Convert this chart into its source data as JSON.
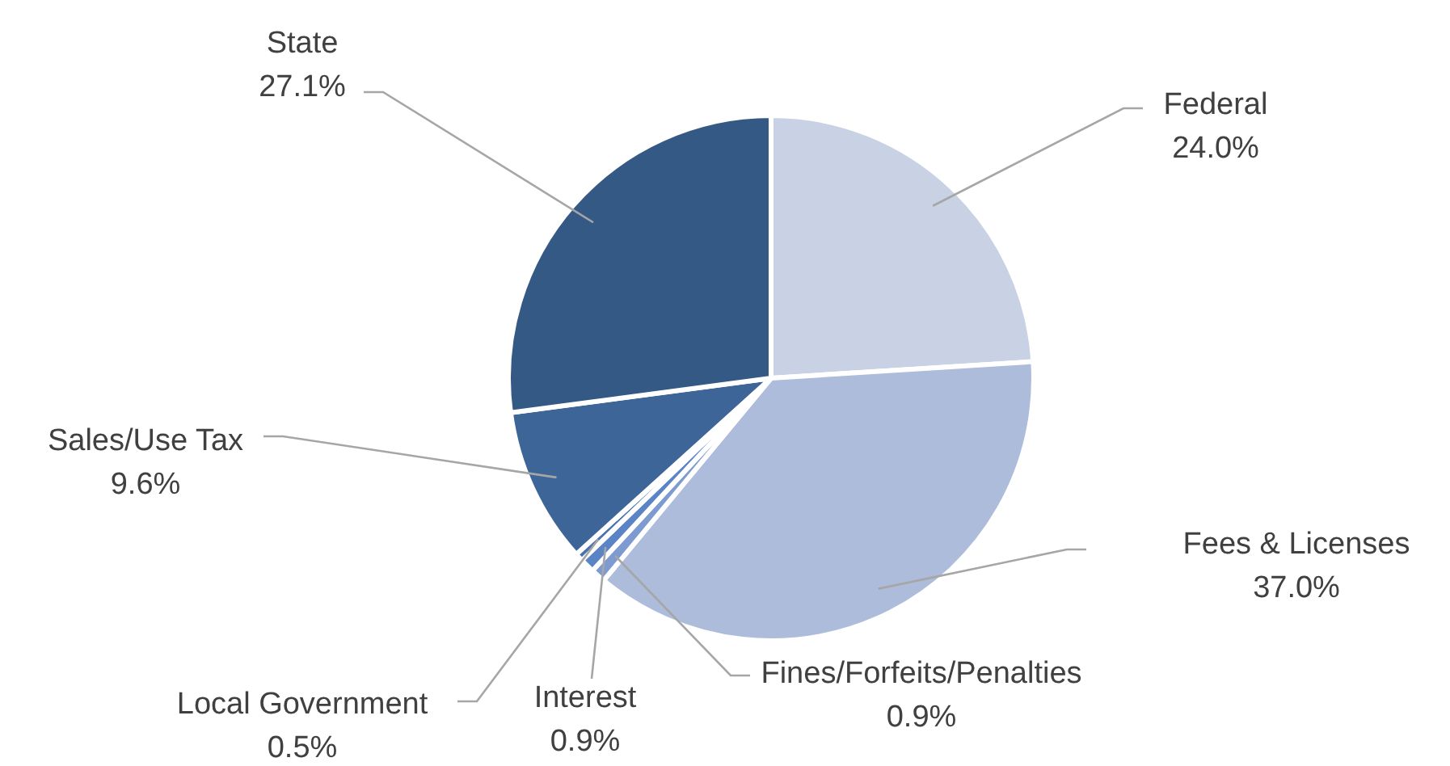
{
  "chart_data": {
    "type": "pie",
    "categories": [
      "Federal",
      "Fees & Licenses",
      "Fines/Forfeits/Penalties",
      "Interest",
      "Local Government",
      "Sales/Use Tax",
      "State"
    ],
    "values": [
      24.0,
      37.0,
      0.9,
      0.9,
      0.5,
      9.6,
      27.1
    ],
    "value_labels": [
      "24.0%",
      "37.0%",
      "0.9%",
      "0.9%",
      "0.5%",
      "9.6%",
      "27.1%"
    ],
    "colors": [
      "#c9d1e4",
      "#aebcdb",
      "#7e9bd1",
      "#5a84c6",
      "#4a72ad",
      "#3d6598",
      "#345985"
    ]
  }
}
